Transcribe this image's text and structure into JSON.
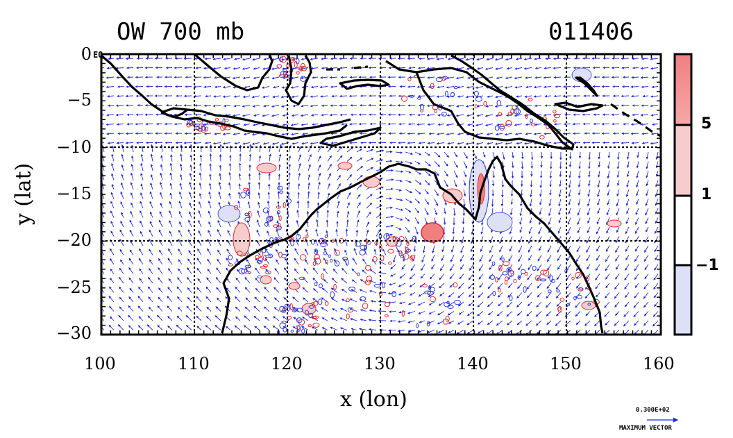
{
  "title_left": "OW 700 mb",
  "title_right": "011406",
  "axes": {
    "x_label": "x (lon)",
    "y_label": "y (lat)",
    "x_ticks": [
      "100",
      "110",
      "120",
      "130",
      "140",
      "150",
      "160"
    ],
    "y_ticks": [
      "0",
      "−5",
      "−10",
      "−15",
      "−20",
      "−25",
      "−30"
    ],
    "eq_label": "EQ"
  },
  "colorbar": {
    "labels": [
      "5",
      "1",
      "−1"
    ],
    "colors": {
      "strong_pos": "#f08080",
      "weak_pos": "#f7cccc",
      "neutral": "#ffffff",
      "neg": "#dde0f7"
    }
  },
  "vector_key": {
    "value": "0.300E+02",
    "label": "MAXIMUM VECTOR"
  },
  "colors": {
    "vector": "#1f2ad8",
    "coast": "#000000",
    "pos_contour": "#e0282a",
    "neg_contour": "#2a36d8"
  }
}
